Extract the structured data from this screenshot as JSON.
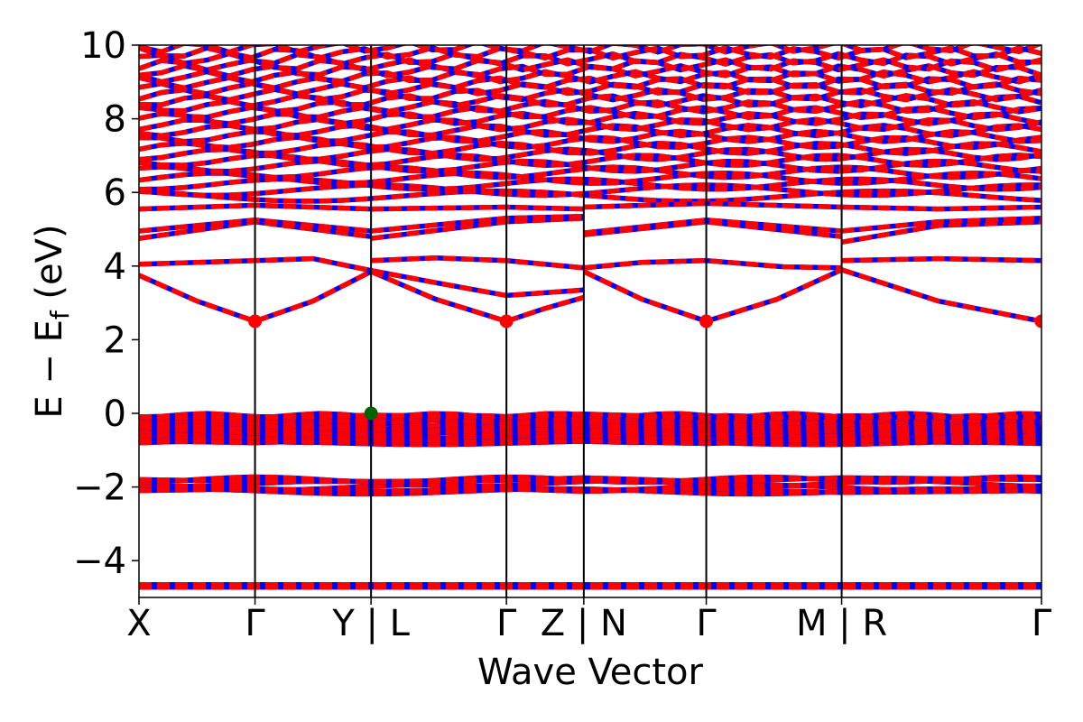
{
  "chart_data": {
    "type": "line",
    "title": "",
    "xlabel": "Wave Vector",
    "ylabel_main": "E − E",
    "ylabel_sub": "f",
    "ylabel_unit": " (eV)",
    "ylim": [
      -5,
      10
    ],
    "yticks": [
      -4,
      -2,
      0,
      2,
      4,
      6,
      8,
      10
    ],
    "ytick_labels": [
      "−4",
      "−2",
      "0",
      "2",
      "4",
      "6",
      "8",
      "10"
    ],
    "xlim": [
      0,
      7.0
    ],
    "kpath_ticks": [
      {
        "x": 0.0,
        "label": "X"
      },
      {
        "x": 0.9,
        "label": "Γ"
      },
      {
        "x": 1.8,
        "label": "Y | L"
      },
      {
        "x": 2.85,
        "label": "Γ"
      },
      {
        "x": 3.45,
        "label": "Z | N"
      },
      {
        "x": 4.4,
        "label": "Γ"
      },
      {
        "x": 5.45,
        "label": "M | R"
      },
      {
        "x": 7.0,
        "label": "Γ"
      }
    ],
    "colors": {
      "spin_up": "#ff0000",
      "spin_down": "#0000ff",
      "vbm": "#006400",
      "cbm": "#ff0000"
    },
    "special_points": [
      {
        "kind": "vbm",
        "x": 1.8,
        "y": 0.0
      },
      {
        "kind": "cbm",
        "x": 0.9,
        "y": 2.5
      },
      {
        "kind": "cbm",
        "x": 2.85,
        "y": 2.5
      },
      {
        "kind": "cbm",
        "x": 4.4,
        "y": 2.5
      },
      {
        "kind": "cbm",
        "x": 7.0,
        "y": 2.5
      }
    ],
    "series": [
      {
        "points": [
          [
            0,
            3.75
          ],
          [
            0.45,
            3.05
          ],
          [
            0.9,
            2.5
          ],
          [
            1.35,
            3.05
          ],
          [
            1.8,
            3.85
          ]
        ]
      },
      {
        "points": [
          [
            1.8,
            3.85
          ],
          [
            2.3,
            3.1
          ],
          [
            2.85,
            2.5
          ],
          [
            3.15,
            2.85
          ],
          [
            3.45,
            3.15
          ]
        ]
      },
      {
        "points": [
          [
            3.45,
            3.85
          ],
          [
            3.9,
            3.1
          ],
          [
            4.4,
            2.5
          ],
          [
            4.95,
            3.1
          ],
          [
            5.45,
            3.9
          ]
        ]
      },
      {
        "points": [
          [
            5.45,
            3.9
          ],
          [
            6.2,
            3.05
          ],
          [
            7.0,
            2.5
          ]
        ]
      },
      {
        "points": [
          [
            0,
            4.05
          ],
          [
            0.9,
            4.15
          ],
          [
            1.35,
            4.2
          ],
          [
            1.8,
            3.88
          ]
        ]
      },
      {
        "points": [
          [
            1.8,
            3.88
          ],
          [
            2.3,
            3.55
          ],
          [
            2.85,
            3.2
          ],
          [
            3.45,
            3.35
          ]
        ]
      },
      {
        "points": [
          [
            1.8,
            4.15
          ],
          [
            2.3,
            4.22
          ],
          [
            2.85,
            4.15
          ],
          [
            3.45,
            3.95
          ]
        ]
      },
      {
        "points": [
          [
            3.45,
            3.95
          ],
          [
            3.9,
            4.1
          ],
          [
            4.4,
            4.15
          ],
          [
            5.0,
            3.98
          ],
          [
            5.45,
            3.95
          ]
        ]
      },
      {
        "points": [
          [
            5.45,
            4.15
          ],
          [
            6.2,
            4.2
          ],
          [
            7.0,
            4.15
          ]
        ]
      },
      {
        "points": [
          [
            0,
            4.75
          ],
          [
            0.9,
            5.2
          ],
          [
            1.8,
            4.8
          ]
        ]
      },
      {
        "points": [
          [
            0,
            4.95
          ],
          [
            0.9,
            5.25
          ],
          [
            1.8,
            4.95
          ]
        ]
      },
      {
        "points": [
          [
            1.8,
            4.75
          ],
          [
            2.85,
            5.2
          ],
          [
            3.45,
            5.3
          ]
        ]
      },
      {
        "points": [
          [
            1.8,
            4.95
          ],
          [
            2.85,
            5.3
          ],
          [
            3.45,
            5.35
          ]
        ]
      },
      {
        "points": [
          [
            3.45,
            4.85
          ],
          [
            4.4,
            5.2
          ],
          [
            5.45,
            4.8
          ]
        ]
      },
      {
        "points": [
          [
            3.45,
            4.9
          ],
          [
            4.4,
            5.25
          ],
          [
            5.45,
            4.95
          ]
        ]
      },
      {
        "points": [
          [
            5.45,
            4.65
          ],
          [
            6.2,
            5.1
          ],
          [
            7.0,
            5.2
          ]
        ]
      },
      {
        "points": [
          [
            5.45,
            4.95
          ],
          [
            6.2,
            5.2
          ],
          [
            7.0,
            5.3
          ]
        ]
      },
      {
        "points": [
          [
            0,
            5.55
          ],
          [
            0.9,
            5.65
          ],
          [
            1.8,
            5.55
          ]
        ]
      },
      {
        "points": [
          [
            1.8,
            5.55
          ],
          [
            2.85,
            5.6
          ],
          [
            3.45,
            5.55
          ]
        ]
      },
      {
        "points": [
          [
            3.45,
            5.6
          ],
          [
            4.4,
            5.7
          ],
          [
            5.45,
            5.6
          ]
        ]
      },
      {
        "points": [
          [
            5.45,
            5.6
          ],
          [
            6.2,
            5.55
          ],
          [
            7.0,
            5.6
          ]
        ]
      },
      {
        "points": [
          [
            0,
            -0.1
          ],
          [
            0.9,
            -0.12
          ],
          [
            1.8,
            -0.05
          ],
          [
            2.85,
            -0.1
          ],
          [
            3.45,
            -0.02
          ],
          [
            4.4,
            -0.12
          ],
          [
            5.45,
            -0.1
          ],
          [
            7.0,
            -0.1
          ]
        ]
      },
      {
        "points": [
          [
            0,
            -0.75
          ],
          [
            0.9,
            -0.8
          ],
          [
            1.8,
            -0.7
          ],
          [
            2.85,
            -0.78
          ],
          [
            3.45,
            -0.75
          ],
          [
            4.4,
            -0.82
          ],
          [
            5.45,
            -0.7
          ],
          [
            7.0,
            -0.82
          ]
        ]
      },
      {
        "points": [
          [
            0,
            -1.8
          ],
          [
            0.9,
            -1.85
          ],
          [
            1.8,
            -1.85
          ],
          [
            2.85,
            -1.82
          ],
          [
            3.45,
            -1.75
          ],
          [
            4.4,
            -1.85
          ],
          [
            5.45,
            -1.75
          ],
          [
            7.0,
            -1.8
          ]
        ]
      },
      {
        "points": [
          [
            0,
            -2.1
          ],
          [
            0.9,
            -2.05
          ],
          [
            1.8,
            -2.12
          ],
          [
            2.85,
            -2.05
          ],
          [
            3.45,
            -2.12
          ],
          [
            4.4,
            -2.05
          ],
          [
            5.45,
            -2.15
          ],
          [
            7.0,
            -2.1
          ]
        ]
      },
      {
        "points": [
          [
            0,
            -4.65
          ],
          [
            3.45,
            -4.65
          ],
          [
            7.0,
            -4.65
          ]
        ]
      },
      {
        "points": [
          [
            0,
            -4.72
          ],
          [
            3.45,
            -4.72
          ],
          [
            7.0,
            -4.72
          ]
        ]
      }
    ],
    "dense_regions": [
      {
        "y_from": -0.8,
        "y_to": -0.05,
        "count": 14
      },
      {
        "y_from": -2.12,
        "y_to": -1.8,
        "count": 4
      },
      {
        "y_from": 5.9,
        "y_to": 9.95,
        "count": 26
      }
    ]
  }
}
